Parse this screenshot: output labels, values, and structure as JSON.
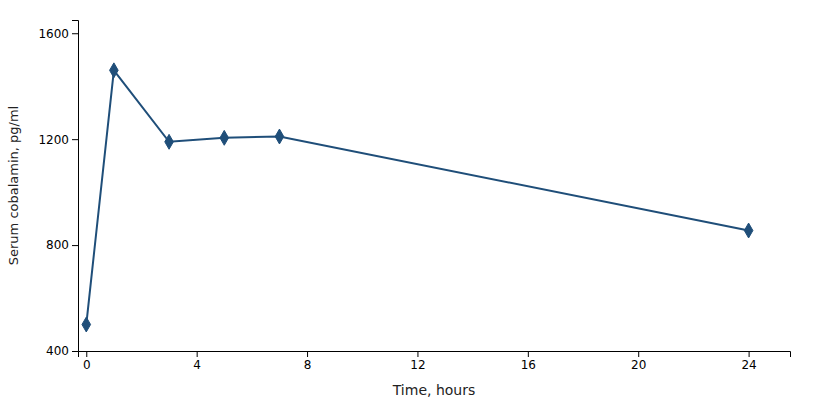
{
  "chart_data": {
    "type": "line",
    "x": [
      0,
      1,
      3,
      5,
      7,
      24
    ],
    "values": [
      500,
      1460,
      1190,
      1205,
      1210,
      855
    ],
    "color": "#1F4E79",
    "marker": "diamond",
    "xlabel": "Time, hours",
    "ylabel": "Serum cobalamin, pg/ml",
    "xlim": [
      -0.3,
      25.5
    ],
    "ylim": [
      400,
      1650
    ],
    "xticks": [
      0,
      4,
      8,
      12,
      16,
      20,
      24
    ],
    "yticks": [
      400,
      800,
      1200,
      1600
    ],
    "grid": false
  }
}
